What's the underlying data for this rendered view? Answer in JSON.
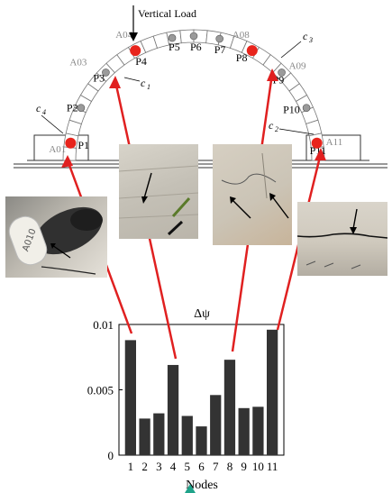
{
  "diagram": {
    "load_label": "Vertical Load",
    "nodes": [
      {
        "code": "A01",
        "point": "P1"
      },
      {
        "code": "",
        "point": "P2"
      },
      {
        "code": "A03",
        "point": "P3"
      },
      {
        "code": "A04",
        "point": "P4"
      },
      {
        "code": "",
        "point": "P5"
      },
      {
        "code": "",
        "point": "P6"
      },
      {
        "code": "",
        "point": "P7"
      },
      {
        "code": "A08",
        "point": "P8"
      },
      {
        "code": "A09",
        "point": "P9"
      },
      {
        "code": "",
        "point": "P10"
      },
      {
        "code": "A11",
        "point": "P11"
      }
    ],
    "crack_labels": {
      "c1": "c",
      "c2": "c",
      "c3": "c",
      "c4": "c"
    },
    "crack_subs": {
      "c1": "1",
      "c2": "2",
      "c3": "3",
      "c4": "4"
    },
    "photo_text": "A010",
    "colors": {
      "marker": "#e8241c",
      "arrow": "#e02020",
      "bar": "#333333",
      "voussoir": "#9a9a9a"
    }
  },
  "chart_data": {
    "type": "bar",
    "title": "Δψ",
    "xlabel": "Nodes",
    "ylabel": "",
    "categories": [
      "1",
      "2",
      "3",
      "4",
      "5",
      "6",
      "7",
      "8",
      "9",
      "10",
      "11"
    ],
    "values": [
      0.0088,
      0.0028,
      0.0032,
      0.0069,
      0.003,
      0.0022,
      0.0046,
      0.0073,
      0.0036,
      0.0037,
      0.0096
    ],
    "ylim": [
      0,
      0.01
    ],
    "yticks": [
      "0",
      "0.005",
      "0.01"
    ],
    "grid": false,
    "legend": "none"
  }
}
